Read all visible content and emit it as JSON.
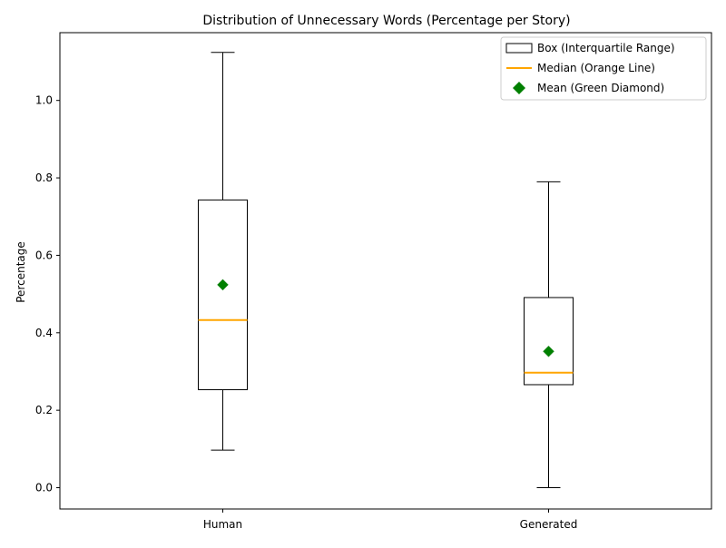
{
  "chart_data": {
    "type": "box",
    "title": "Distribution of Unnecessary Words (Percentage per Story)",
    "xlabel": "",
    "ylabel": "Percentage",
    "ylim": [
      -0.055,
      1.175
    ],
    "yticks": [
      "0.0",
      "0.2",
      "0.4",
      "0.6",
      "0.8",
      "1.0"
    ],
    "categories": [
      "Human",
      "Generated"
    ],
    "boxes": [
      {
        "category": "Human",
        "whisker_low": 0.097,
        "q1": 0.253,
        "median": 0.433,
        "q3": 0.743,
        "whisker_high": 1.124,
        "mean": 0.524
      },
      {
        "category": "Generated",
        "whisker_low": 0.0,
        "q1": 0.266,
        "median": 0.297,
        "q3": 0.491,
        "whisker_high": 0.79,
        "mean": 0.352
      }
    ],
    "legend": {
      "placement": "top-right",
      "entries": [
        {
          "label": "Box (Interquartile Range)",
          "kind": "box"
        },
        {
          "label": "Median (Orange Line)",
          "kind": "line"
        },
        {
          "label": "Mean (Green Diamond)",
          "kind": "diamond"
        }
      ]
    },
    "colors": {
      "median": "#ffa500",
      "mean": "#008000",
      "box": "#000000"
    },
    "grid": false
  }
}
